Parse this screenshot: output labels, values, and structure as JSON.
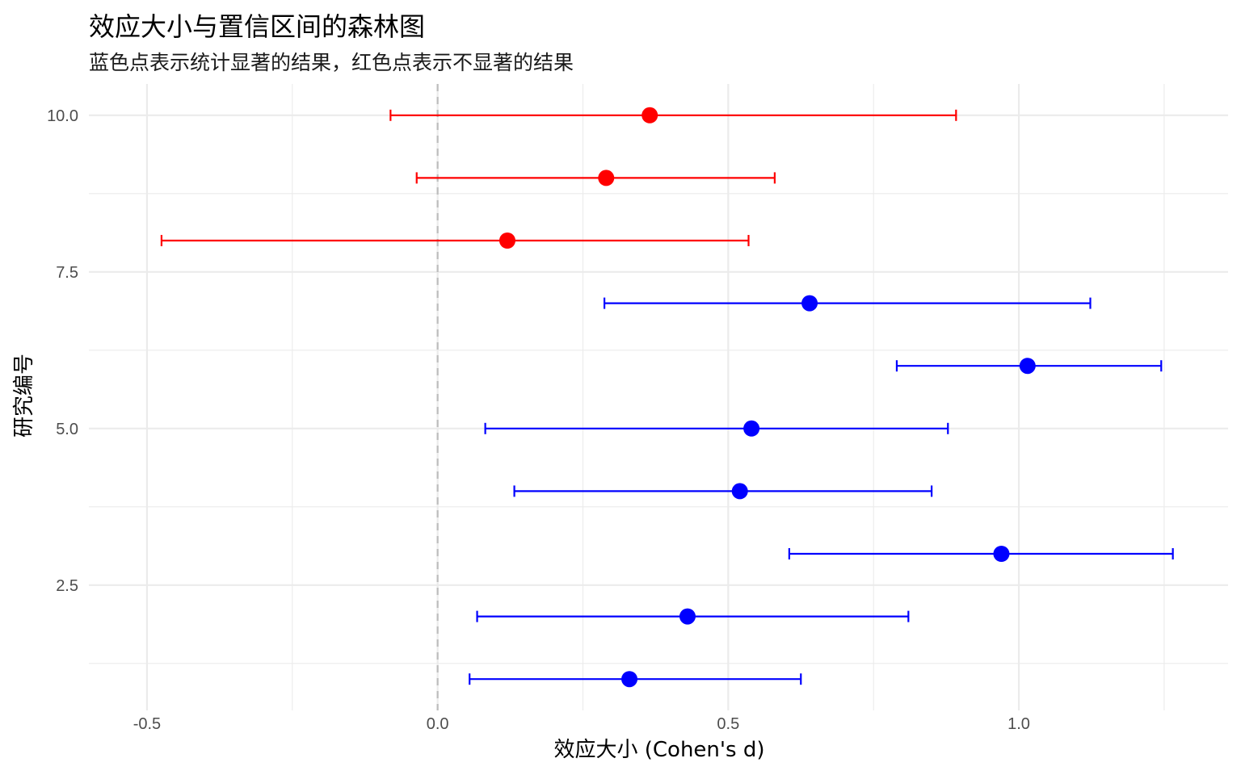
{
  "chart_data": {
    "type": "scatter",
    "title": "效应大小与置信区间的森林图",
    "subtitle": "蓝色点表示统计显著的结果，红色点表示不显著的结果",
    "xlabel": "效应大小 (Cohen's d)",
    "ylabel": "研究编号",
    "xlim": [
      -0.6,
      1.36
    ],
    "ylim": [
      0.5,
      10.5
    ],
    "x_ticks": [
      -0.5,
      0.0,
      0.5,
      1.0
    ],
    "x_tick_labels": [
      "-0.5",
      "0.0",
      "0.5",
      "1.0"
    ],
    "y_ticks": [
      2.5,
      5.0,
      7.5,
      10.0
    ],
    "y_tick_labels": [
      "2.5",
      "5.0",
      "7.5",
      "10.0"
    ],
    "grid": true,
    "reference_line_x": 0,
    "colors": {
      "significant": "#0000ff",
      "not_significant": "#ff0000",
      "reference": "#bdbdbd",
      "grid": "#ebebeb"
    },
    "points": [
      {
        "study": 1,
        "estimate": 0.33,
        "lower": 0.055,
        "upper": 0.625,
        "significant": true
      },
      {
        "study": 2,
        "estimate": 0.43,
        "lower": 0.068,
        "upper": 0.81,
        "significant": true
      },
      {
        "study": 3,
        "estimate": 0.97,
        "lower": 0.605,
        "upper": 1.265,
        "significant": true
      },
      {
        "study": 4,
        "estimate": 0.52,
        "lower": 0.132,
        "upper": 0.85,
        "significant": true
      },
      {
        "study": 5,
        "estimate": 0.54,
        "lower": 0.082,
        "upper": 0.878,
        "significant": true
      },
      {
        "study": 6,
        "estimate": 1.015,
        "lower": 0.79,
        "upper": 1.245,
        "significant": true
      },
      {
        "study": 7,
        "estimate": 0.64,
        "lower": 0.287,
        "upper": 1.123,
        "significant": true
      },
      {
        "study": 8,
        "estimate": 0.12,
        "lower": -0.475,
        "upper": 0.535,
        "significant": false
      },
      {
        "study": 9,
        "estimate": 0.29,
        "lower": -0.036,
        "upper": 0.58,
        "significant": false
      },
      {
        "study": 10,
        "estimate": 0.365,
        "lower": -0.081,
        "upper": 0.892,
        "significant": false
      }
    ]
  }
}
